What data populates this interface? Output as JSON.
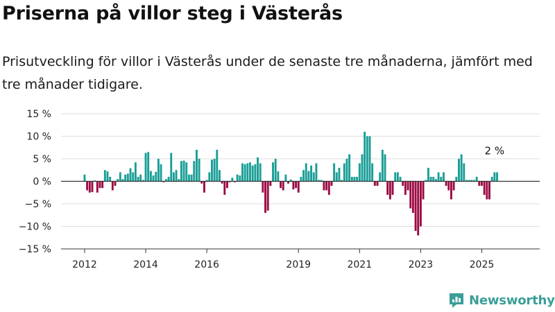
{
  "title": "Priserna på villor steg i Västerås",
  "subtitle": "Prisutveckling för villor i Västerås under de senaste tre månaderna, jämfört med tre månader tidigare.",
  "brand": "Newsworthy",
  "colors": {
    "positive": "#1a9e96",
    "negative": "#9b0a43",
    "brand": "#3a9e99"
  },
  "chart_data": {
    "type": "bar",
    "x_start": "2012-01",
    "x_step": "month",
    "ylim": [
      -15,
      15
    ],
    "yticks": [
      -15,
      -10,
      -5,
      0,
      5,
      10,
      15
    ],
    "ytick_labels": [
      "−15 %",
      "−10 %",
      "−5 %",
      "0 %",
      "5 %",
      "10 %",
      "15 %"
    ],
    "xticks": [
      {
        "label": "2012",
        "month": "2012-01"
      },
      {
        "label": "2014",
        "month": "2014-01"
      },
      {
        "label": "2016",
        "month": "2016-01"
      },
      {
        "label": "2019",
        "month": "2019-01"
      },
      {
        "label": "2021",
        "month": "2021-01"
      },
      {
        "label": "2023",
        "month": "2023-01"
      },
      {
        "label": "2025",
        "month": "2025-01"
      }
    ],
    "annotation": {
      "text": "2 %",
      "month": "2025-06"
    },
    "values": [
      1.5,
      -2.0,
      -2.5,
      -2.4,
      0.2,
      -2.5,
      -1.5,
      -1.5,
      2.5,
      2.2,
      1.0,
      -2.0,
      -1.0,
      0.5,
      2.0,
      0.5,
      1.5,
      1.7,
      2.9,
      2.0,
      4.2,
      1.0,
      1.5,
      0.3,
      6.3,
      6.5,
      2.3,
      1.3,
      2.1,
      5.0,
      3.8,
      -0.2,
      0.5,
      1.0,
      6.3,
      2.0,
      2.5,
      0.5,
      4.5,
      4.6,
      4.2,
      1.5,
      1.5,
      4.5,
      7.0,
      5.0,
      -0.5,
      -2.5,
      0.3,
      2.0,
      4.8,
      5.0,
      7.0,
      2.5,
      -0.5,
      -3.0,
      -1.5,
      -0.2,
      0.8,
      -0.2,
      1.5,
      1.3,
      4.0,
      3.8,
      4.0,
      4.2,
      3.5,
      3.8,
      5.3,
      4.0,
      -2.5,
      -7.0,
      -6.5,
      -1.0,
      4.2,
      5.0,
      2.2,
      -1.5,
      -2.0,
      1.5,
      -0.5,
      0.4,
      -1.8,
      -1.5,
      -2.5,
      1.0,
      2.5,
      4.0,
      2.3,
      3.5,
      2.0,
      4.0,
      0.3,
      0.3,
      -2.0,
      -2.0,
      -3.0,
      -1.0,
      4.0,
      2.0,
      3.0,
      0.3,
      4.0,
      5.0,
      6.0,
      1.0,
      1.0,
      1.0,
      4.0,
      6.0,
      11.0,
      10.0,
      10.0,
      4.0,
      -1.0,
      -1.0,
      2.0,
      7.0,
      6.0,
      -3.0,
      -4.0,
      -3.0,
      2.0,
      2.0,
      1.0,
      -1.0,
      -3.0,
      -2.0,
      -6.0,
      -7.0,
      -11.0,
      -12.0,
      -10.0,
      -4.0,
      0.3,
      3.0,
      1.0,
      1.0,
      0.5,
      2.0,
      1.0,
      2.0,
      -1.0,
      -2.0,
      -4.0,
      -2.0,
      1.0,
      5.0,
      6.0,
      4.0,
      0.3,
      0.3,
      0.3,
      0.3,
      1.0,
      -1.0,
      -1.0,
      -3.0,
      -4.0,
      -4.0,
      1.0,
      2.0,
      2.0
    ]
  }
}
